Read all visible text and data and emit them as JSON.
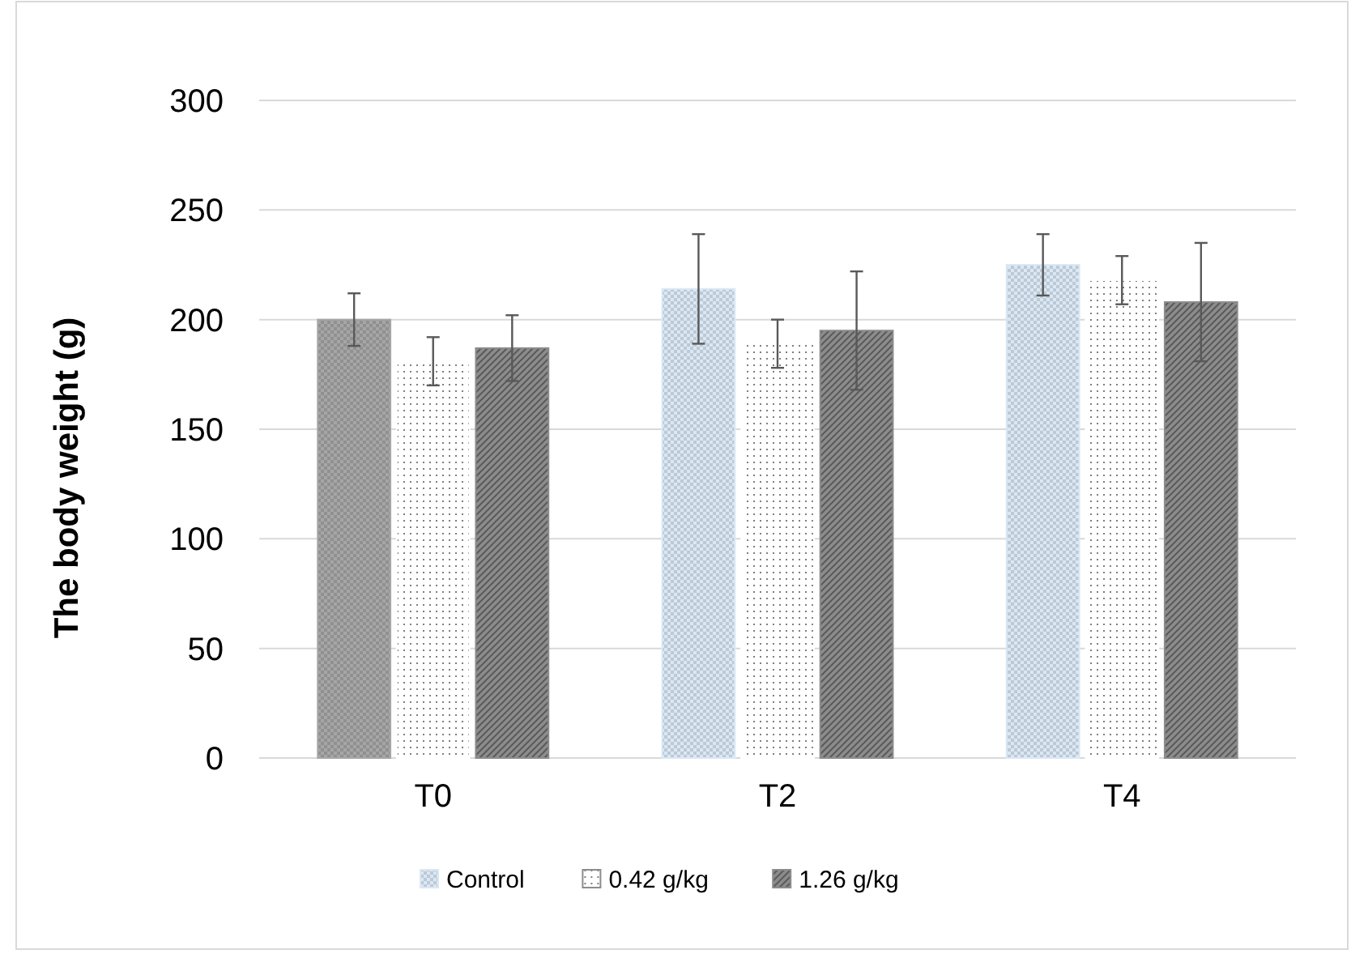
{
  "chart_data": {
    "type": "bar",
    "ylabel": "The body weight (g)",
    "categories": [
      "T0",
      "T2",
      "T4"
    ],
    "series": [
      {
        "name": "Control",
        "color": "#dae8f5",
        "colors": [
          "#a6a6a6",
          "#dae8f5",
          "#dae8f5"
        ],
        "values": [
          200,
          214,
          225
        ],
        "errors": [
          12,
          25,
          14
        ]
      },
      {
        "name": "0.42 g/kg",
        "color": "#ffffff",
        "values": [
          181,
          189,
          218
        ],
        "errors": [
          11,
          11,
          11
        ]
      },
      {
        "name": "1.26 g/kg",
        "color": "#8c8c8c",
        "values": [
          187,
          195,
          208
        ],
        "errors": [
          15,
          27,
          27
        ]
      }
    ],
    "ylim": [
      0,
      300
    ],
    "yticks": [
      0,
      50,
      100,
      150,
      200,
      250,
      300
    ],
    "grid": "y",
    "legend": "bottom"
  }
}
